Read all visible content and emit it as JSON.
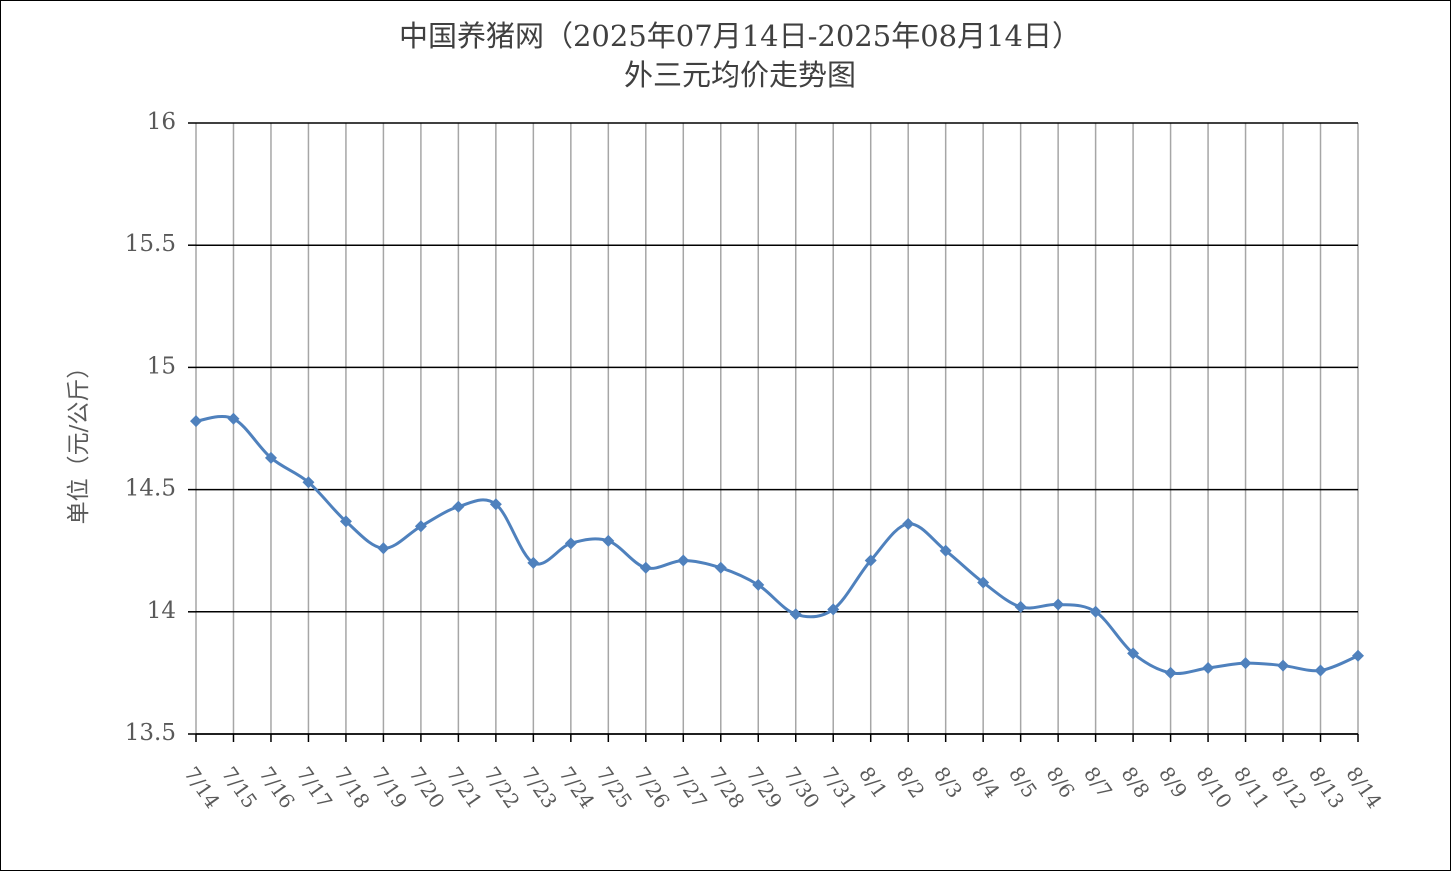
{
  "chart_data": {
    "type": "line",
    "title": "中国养猪网（2025年07月14日-2025年08月14日）",
    "subtitle": "外三元均价走势图",
    "y_label": "单位（元/公斤）",
    "categories": [
      "7/14",
      "7/15",
      "7/16",
      "7/17",
      "7/18",
      "7/19",
      "7/20",
      "7/21",
      "7/22",
      "7/23",
      "7/24",
      "7/25",
      "7/26",
      "7/27",
      "7/28",
      "7/29",
      "7/30",
      "7/31",
      "8/1",
      "8/2",
      "8/3",
      "8/4",
      "8/5",
      "8/6",
      "8/7",
      "8/8",
      "8/9",
      "8/10",
      "8/11",
      "8/12",
      "8/13",
      "8/14"
    ],
    "series": [
      {
        "name": "外三元",
        "color": "#4f81bd",
        "values": [
          14.78,
          14.79,
          14.63,
          14.53,
          14.37,
          14.26,
          14.35,
          14.43,
          14.44,
          14.2,
          14.28,
          14.29,
          14.18,
          14.21,
          14.18,
          14.11,
          13.99,
          14.01,
          14.21,
          14.36,
          14.25,
          14.12,
          14.02,
          14.03,
          14.0,
          13.83,
          13.75,
          13.77,
          13.79,
          13.78,
          13.76,
          13.82
        ]
      }
    ],
    "ylim": [
      13.5,
      16
    ],
    "yticks": [
      13.5,
      14,
      14.5,
      15,
      15.5,
      16
    ],
    "grid": true,
    "smooth": true
  }
}
